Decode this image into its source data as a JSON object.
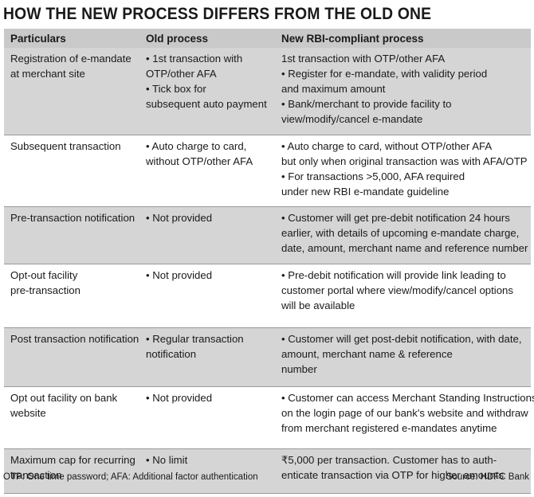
{
  "title": "HOW THE NEW PROCESS DIFFERS FROM THE OLD ONE",
  "headers": [
    "Particulars",
    "Old process",
    "New RBI-compliant process"
  ],
  "rows": [
    {
      "particular": [
        "Registration of e-mandate",
        "at merchant site"
      ],
      "old": [
        "• 1st transaction with",
        "OTP/other AFA",
        "• Tick box for",
        "subsequent auto payment"
      ],
      "new": [
        "1st transaction with OTP/other AFA",
        "• Register for e-mandate, with validity period",
        "and maximum amount",
        "• Bank/merchant to provide facility to",
        "view/modify/cancel e-mandate"
      ]
    },
    {
      "particular": [
        "Subsequent transaction"
      ],
      "old": [
        "• Auto charge to card,",
        "without OTP/other AFA"
      ],
      "new": [
        "• Auto charge to card, without OTP/other AFA",
        "but only when original transaction was with AFA/OTP",
        "• For transactions >5,000, AFA required",
        "under new RBI e-mandate guideline"
      ]
    },
    {
      "particular": [
        "Pre-transaction notification"
      ],
      "old": [
        "• Not provided"
      ],
      "new": [
        "• Customer will get pre-debit notification 24 hours",
        "earlier, with details of upcoming e-mandate charge,",
        "date, amount, merchant name and reference number"
      ]
    },
    {
      "particular": [
        "Opt-out facility",
        "pre-transaction"
      ],
      "old": [
        "• Not provided"
      ],
      "new": [
        "• Pre-debit notification will provide link leading to",
        "customer portal where view/modify/cancel options",
        "will be available"
      ]
    },
    {
      "particular": [
        "Post transaction notification"
      ],
      "old": [
        "• Regular transaction",
        "notification"
      ],
      "new": [
        "• Customer will get post-debit notification, with date,",
        "amount, merchant name & reference",
        "number"
      ]
    },
    {
      "particular": [
        "Opt out facility on bank",
        "website"
      ],
      "old": [
        "• Not provided"
      ],
      "new": [
        "• Customer can access Merchant Standing Instructions",
        "on the login page of our bank's website and withdraw",
        "from merchant registered e-mandates anytime"
      ]
    },
    {
      "particular": [
        "Maximum cap for recurring",
        "transaction"
      ],
      "old": [
        "• No limit"
      ],
      "new": [
        "₹5,000 per transaction. Customer has to auth-",
        "enticate transaction via OTP for higher amounts"
      ]
    }
  ],
  "footnote": "OTP: One time password; AFA: Additional factor authentication",
  "source": "Source: HDFC Bank"
}
